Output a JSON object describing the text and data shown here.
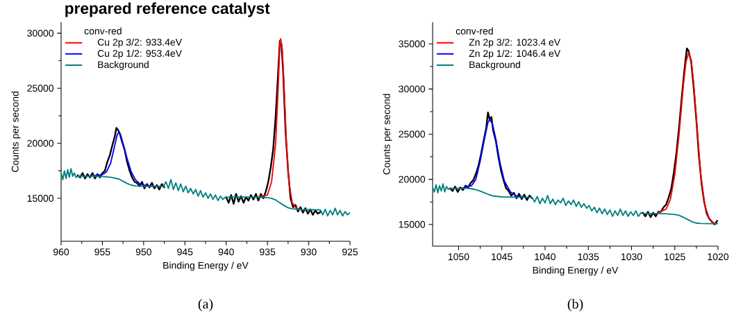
{
  "chart_data": [
    {
      "type": "line",
      "title": "prepared reference catalyst",
      "xlabel": "Binding Energy / eV",
      "ylabel": "Counts per second",
      "legend_title": "conv-red",
      "legend": "top left",
      "annotations": [
        "(a)"
      ],
      "xlim": [
        960,
        925
      ],
      "ylim": [
        11100,
        31000
      ],
      "xticks": [
        960,
        955,
        950,
        945,
        940,
        935,
        930,
        925
      ],
      "yticks": [
        15000,
        20000,
        25000,
        30000
      ],
      "series": [
        {
          "color": "#000000",
          "x": [
            958,
            957.7,
            957.4,
            957.1,
            956.8,
            956.5,
            956.2,
            955.9,
            955.6,
            955.3,
            955,
            954.7,
            954.4,
            954.1,
            953.8,
            953.5,
            953.3,
            953.1,
            952.9,
            952.6,
            952.3,
            952,
            951.7,
            951.4,
            951.1,
            950.8,
            950.5,
            950.2,
            949.9,
            949.6,
            949.3,
            949,
            948.7,
            948.4,
            948.1,
            947.8,
            947.5,
            944,
            940,
            939.7,
            939.4,
            939.1,
            938.8,
            938.5,
            938.2,
            937.9,
            937.6,
            937.3,
            937,
            936.7,
            936.4,
            936.1,
            935.8,
            935.5,
            935.2,
            934.9,
            934.6,
            934.3,
            934,
            933.7,
            933.5,
            933.3,
            933.1,
            932.8,
            932.5,
            932.2,
            931.9,
            931.6,
            931.3,
            931,
            930.7,
            930.4,
            930.1,
            929.8,
            929.5,
            929.2,
            928.9,
            928.5
          ],
          "values": [
            17100,
            16900,
            17300,
            16800,
            17200,
            16900,
            17300,
            16800,
            17200,
            16900,
            17300,
            17500,
            18300,
            18900,
            19800,
            20600,
            21400,
            21200,
            20900,
            20100,
            19400,
            18300,
            17500,
            16900,
            16500,
            16400,
            16100,
            16500,
            15900,
            16300,
            16000,
            16400,
            15900,
            16200,
            15800,
            16300,
            16000,
            null,
            15100,
            14600,
            15300,
            14500,
            15400,
            14700,
            15200,
            14600,
            15100,
            14800,
            15300,
            14900,
            15400,
            14800,
            15400,
            15000,
            15600,
            16500,
            17800,
            19500,
            22500,
            26500,
            29300,
            29000,
            26500,
            21000,
            17500,
            15000,
            14200,
            14400,
            13800,
            14200,
            13700,
            14100,
            13600,
            14000,
            13500,
            13900,
            13600,
            13800
          ]
        },
        {
          "name": "Cu 2p 3/2: 933.4eV",
          "color": "#ff0000",
          "x": [
            936,
            935,
            934.5,
            934,
            933.7,
            933.5,
            933.4,
            933.2,
            933,
            932.7,
            932.4,
            932,
            931.5,
            931
          ],
          "values": [
            15150,
            15300,
            16500,
            20000,
            25000,
            29000,
            29500,
            28500,
            25500,
            20000,
            16500,
            14600,
            14100,
            14000
          ]
        },
        {
          "name": "Cu 2p 1/2: 953.4eV",
          "color": "#0000ff",
          "x": [
            956,
            955,
            954.5,
            954,
            953.5,
            953.2,
            953,
            952.8,
            952.5,
            952,
            951.5,
            951,
            950.5,
            950,
            949
          ],
          "values": [
            17050,
            17150,
            17400,
            18200,
            19800,
            20800,
            21000,
            20800,
            20000,
            18600,
            17400,
            16700,
            16350,
            16200,
            16100
          ]
        },
        {
          "name": "Background",
          "color": "#008080",
          "x": [
            960,
            959.8,
            959.6,
            959.4,
            959.2,
            959,
            958.8,
            958.6,
            958.4,
            958.2,
            958,
            956,
            955,
            954,
            953,
            952.5,
            952,
            951.5,
            951,
            950,
            947.6,
            947.3,
            947,
            946.7,
            946.4,
            946.1,
            945.8,
            945.5,
            945.2,
            944.9,
            944.6,
            944.3,
            944,
            943.7,
            943.4,
            943.1,
            942.8,
            942.5,
            942.2,
            941.9,
            941.6,
            941.3,
            941,
            940.7,
            940.4,
            940.1,
            939,
            936,
            935,
            934.5,
            934,
            933.5,
            933,
            932.5,
            932,
            931,
            928.6,
            928.3,
            928,
            927.7,
            927.4,
            927.1,
            926.8,
            926.5,
            926.2,
            925.9,
            925.6,
            925.3,
            925
          ],
          "values": [
            17300,
            16700,
            17500,
            16800,
            17600,
            16900,
            17700,
            17000,
            17300,
            16900,
            17000,
            17000,
            16980,
            16920,
            16750,
            16550,
            16350,
            16200,
            16130,
            16100,
            16100,
            16500,
            15900,
            16700,
            15800,
            16400,
            15700,
            16300,
            15600,
            16100,
            15500,
            15900,
            15400,
            15800,
            15200,
            15700,
            15100,
            15500,
            15000,
            15400,
            14900,
            15300,
            14800,
            15200,
            14900,
            15100,
            15120,
            15100,
            15060,
            15000,
            14850,
            14600,
            14350,
            14150,
            14050,
            13980,
            13950,
            13500,
            14000,
            13400,
            13900,
            13500,
            14100,
            13500,
            13900,
            13400,
            13800,
            13500,
            13700
          ]
        }
      ]
    },
    {
      "type": "line",
      "xlabel": "Binding Energy / eV",
      "ylabel": "Counts per second",
      "legend_title": "conv-red",
      "legend": "top left",
      "annotations": [
        "(b)"
      ],
      "xlim": [
        1053,
        1020
      ],
      "ylim": [
        12600,
        37400
      ],
      "xticks": [
        1050,
        1045,
        1040,
        1035,
        1030,
        1025,
        1020
      ],
      "yticks": [
        15000,
        20000,
        25000,
        30000,
        35000
      ],
      "series": [
        {
          "color": "#000000",
          "x": [
            1051,
            1050.7,
            1050.4,
            1050.1,
            1049.8,
            1049.5,
            1049.2,
            1048.9,
            1048.6,
            1048.3,
            1048,
            1047.7,
            1047.4,
            1047.1,
            1046.8,
            1046.6,
            1046.4,
            1046.2,
            1046,
            1045.7,
            1045.4,
            1045.1,
            1044.8,
            1044.5,
            1044.2,
            1043.9,
            1043.6,
            1043.3,
            1043,
            1042.7,
            1042.4,
            1042.1,
            1041.8,
            1041.5,
            1035,
            1028.7,
            1028.4,
            1028.1,
            1027.8,
            1027.5,
            1027.2,
            1026.9,
            1026.6,
            1026.3,
            1026,
            1025.7,
            1025.4,
            1025.1,
            1024.8,
            1024.5,
            1024.2,
            1023.9,
            1023.6,
            1023.4,
            1023.1,
            1022.8,
            1022.5,
            1022.2,
            1021.9,
            1021.6,
            1021.3,
            1021,
            1020.7,
            1020.4,
            1020.1
          ],
          "values": [
            19000,
            18700,
            19200,
            18600,
            19100,
            18800,
            19300,
            19100,
            19600,
            19900,
            20600,
            21500,
            22800,
            24300,
            25700,
            27400,
            26600,
            26900,
            25400,
            24300,
            22500,
            21000,
            19900,
            19000,
            18700,
            18200,
            18500,
            17900,
            18400,
            17800,
            18300,
            17700,
            18200,
            17900,
            null,
            16300,
            15900,
            16400,
            15800,
            16300,
            15900,
            16400,
            16400,
            16900,
            17200,
            18000,
            19000,
            20800,
            23000,
            25800,
            29000,
            32000,
            34500,
            34200,
            33000,
            30000,
            26500,
            22500,
            19500,
            17500,
            16200,
            15600,
            15300,
            15000,
            15400
          ]
        },
        {
          "name": "Zn 2p 3/2: 1023.4 eV",
          "color": "#ff0000",
          "x": [
            1027,
            1026,
            1025.5,
            1025,
            1024.5,
            1024,
            1023.7,
            1023.4,
            1023.1,
            1022.8,
            1022.4,
            1022,
            1021.5,
            1021,
            1020.5,
            1020.1
          ],
          "values": [
            16250,
            16700,
            17800,
            20500,
            25000,
            30500,
            33000,
            34000,
            33200,
            30500,
            25500,
            20500,
            17000,
            15600,
            15150,
            15100
          ]
        },
        {
          "name": "Zn 2p 1/2: 1046.4 eV",
          "color": "#0000ff",
          "x": [
            1049.5,
            1048.5,
            1048,
            1047.5,
            1047,
            1046.6,
            1046.4,
            1046.1,
            1045.7,
            1045.2,
            1044.7,
            1044,
            1043.3,
            1042.5
          ],
          "values": [
            19050,
            19300,
            20000,
            22000,
            24500,
            26300,
            26600,
            26200,
            24500,
            21800,
            19800,
            18600,
            18150,
            18050
          ]
        },
        {
          "name": "Background",
          "color": "#008080",
          "x": [
            1053,
            1052.8,
            1052.6,
            1052.4,
            1052.2,
            1052,
            1051.8,
            1051.6,
            1051.4,
            1051.2,
            1051,
            1049,
            1048.5,
            1048,
            1047.5,
            1047,
            1046.5,
            1046,
            1045,
            1041.5,
            1041.2,
            1040.9,
            1040.6,
            1040.3,
            1040,
            1039.7,
            1039.4,
            1039.1,
            1038.8,
            1038.5,
            1038.2,
            1037.9,
            1037.6,
            1037.3,
            1037,
            1036.7,
            1036.4,
            1036.1,
            1035.8,
            1035.5,
            1035.2,
            1034.9,
            1034.6,
            1034.3,
            1034,
            1033.7,
            1033.4,
            1033.1,
            1032.8,
            1032.5,
            1032.2,
            1031.9,
            1031.6,
            1031.3,
            1031,
            1030.7,
            1030.4,
            1030.1,
            1029.8,
            1029.5,
            1029.2,
            1028.9,
            1028.7,
            1027,
            1026,
            1025,
            1024.5,
            1024,
            1023.5,
            1023,
            1022.5,
            1022,
            1020
          ],
          "values": [
            19100,
            18600,
            19400,
            18500,
            19300,
            18700,
            19500,
            18600,
            19200,
            18900,
            19000,
            19000,
            18950,
            18850,
            18700,
            18500,
            18300,
            18150,
            18050,
            18000,
            17500,
            18100,
            17300,
            17900,
            17400,
            18200,
            17300,
            17800,
            17200,
            17700,
            17400,
            17900,
            17100,
            17600,
            17200,
            17700,
            17000,
            17500,
            16900,
            17300,
            16800,
            17100,
            16500,
            16900,
            16300,
            16800,
            16200,
            16700,
            16100,
            16600,
            15900,
            16500,
            16000,
            16700,
            16000,
            16500,
            15900,
            16400,
            16000,
            16500,
            15900,
            16300,
            16200,
            16200,
            16180,
            16100,
            16000,
            15800,
            15550,
            15300,
            15150,
            15100,
            15070
          ]
        }
      ]
    }
  ]
}
